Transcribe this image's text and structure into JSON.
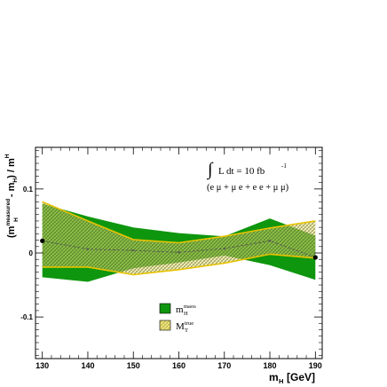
{
  "chart_data": {
    "type": "area",
    "title": "",
    "xlabel": "m",
    "xlabel_sub": "H",
    "xlabel_unit": "[GeV]",
    "ylabel": {
      "open": "(m",
      "sup": "measured",
      "sub": "H",
      "mid": " - m",
      "mid_sub": "H",
      "close": ") / m",
      "end_sub": "H"
    },
    "xlim": [
      128.5,
      191.5
    ],
    "ylim": [
      -0.165,
      0.165
    ],
    "xticks": [
      130,
      140,
      150,
      160,
      170,
      180,
      190
    ],
    "yticks": [
      {
        "value": 0.1,
        "label": "0.1"
      },
      {
        "value": 0,
        "label": "0"
      },
      {
        "value": -0.1,
        "label": "-0.1"
      }
    ],
    "grid": false,
    "annotation": {
      "integral": "∫",
      "text": "L dt = 10 fb",
      "sup": "-1",
      "channels": "(e μ + μ e + e e + μ μ)"
    },
    "legend": {
      "position": "bottom-center",
      "entries": [
        {
          "key": "maos",
          "base": "m",
          "sub": "H",
          "sup": "maos"
        },
        {
          "key": "mt",
          "base": "M",
          "sub": "T",
          "sup": "true"
        }
      ]
    },
    "colors": {
      "maos_fill": "#0f960f",
      "mt_fill": "#f6e67a",
      "mt_edge": "#e8c200",
      "hatch": "#2e4a10",
      "central": "#555555",
      "marker": "#000000"
    },
    "x": [
      130,
      140,
      150,
      160,
      170,
      180,
      190
    ],
    "series": [
      {
        "key": "maos",
        "upper": [
          0.077,
          0.057,
          0.04,
          0.031,
          0.026,
          0.054,
          0.027
        ],
        "lower": [
          -0.038,
          -0.045,
          -0.024,
          -0.015,
          -0.004,
          -0.019,
          -0.042
        ]
      },
      {
        "key": "mt",
        "upper": [
          0.08,
          0.05,
          0.021,
          0.016,
          0.026,
          0.039,
          0.05
        ],
        "lower": [
          -0.022,
          -0.022,
          -0.034,
          -0.026,
          -0.016,
          -0.002,
          -0.008
        ]
      }
    ],
    "central": [
      0.019,
      0.006,
      0.004,
      0.001,
      0.007,
      0.019,
      -0.007
    ]
  }
}
